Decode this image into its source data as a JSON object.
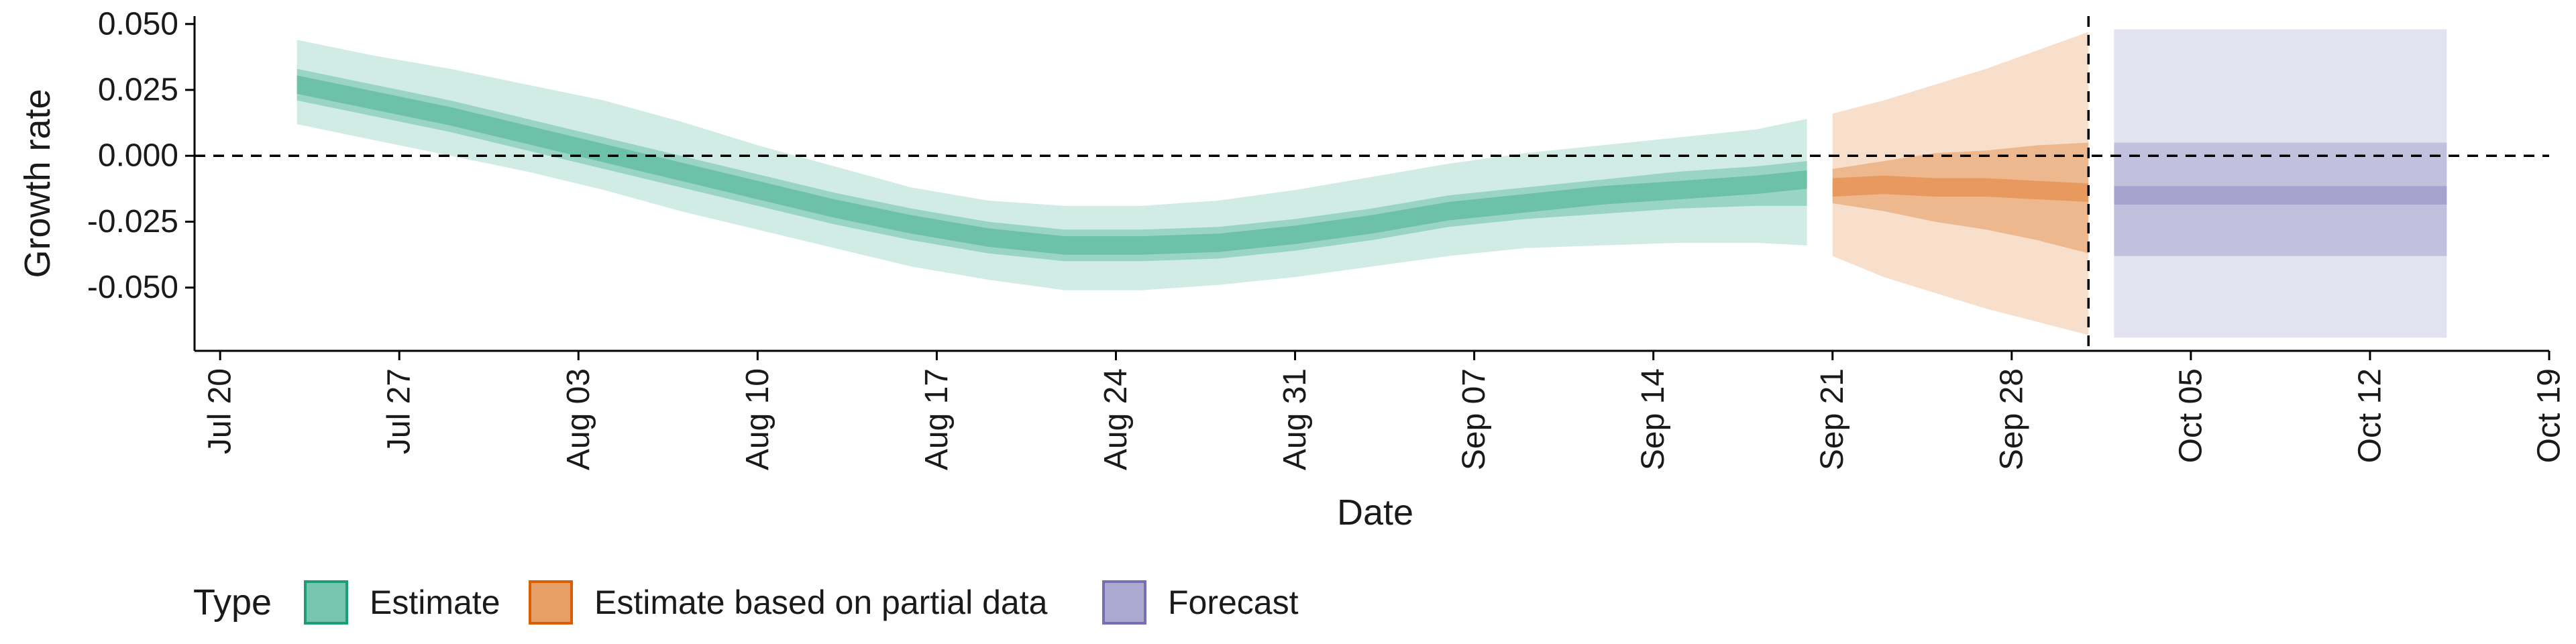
{
  "chart_data": {
    "type": "area",
    "xlabel": "Date",
    "ylabel": "Growth rate",
    "x_ticks": [
      "Jul 20",
      "Jul 27",
      "Aug 03",
      "Aug 10",
      "Aug 17",
      "Aug 24",
      "Aug 31",
      "Sep 07",
      "Sep 14",
      "Sep 21",
      "Sep 28",
      "Oct 05",
      "Oct 12",
      "Oct 19"
    ],
    "y_ticks": [
      "0.050",
      "0.025",
      "0.000",
      "-0.025",
      "-0.050"
    ],
    "xlim": [
      "2020-07-19",
      "2020-10-19"
    ],
    "ylim": [
      -0.074,
      0.053
    ],
    "reference_lines": {
      "horizontal_y": 0.0,
      "vertical_date": "2020-10-01"
    },
    "grid": false,
    "legend": {
      "title": "Type",
      "position": "bottom-left",
      "items": [
        {
          "label": "Estimate",
          "color": "#1b9e77"
        },
        {
          "label": "Estimate based on partial data",
          "color": "#d95f02"
        },
        {
          "label": "Forecast",
          "color": "#7570b3"
        }
      ]
    },
    "series": [
      {
        "name": "Estimate",
        "color": "#1b9e77",
        "dates": [
          "2020-07-23",
          "2020-07-26",
          "2020-07-29",
          "2020-08-01",
          "2020-08-04",
          "2020-08-07",
          "2020-08-10",
          "2020-08-13",
          "2020-08-16",
          "2020-08-19",
          "2020-08-22",
          "2020-08-25",
          "2020-08-28",
          "2020-08-31",
          "2020-09-03",
          "2020-09-06",
          "2020-09-09",
          "2020-09-12",
          "2020-09-15",
          "2020-09-18",
          "2020-09-20"
        ],
        "median": [
          0.027,
          0.021,
          0.015,
          0.008,
          0.001,
          -0.006,
          -0.013,
          -0.02,
          -0.026,
          -0.031,
          -0.034,
          -0.034,
          -0.033,
          -0.03,
          -0.026,
          -0.021,
          -0.018,
          -0.015,
          -0.013,
          -0.011,
          -0.009
        ],
        "lower_90": [
          0.012,
          0.006,
          0.0,
          -0.006,
          -0.013,
          -0.021,
          -0.028,
          -0.035,
          -0.042,
          -0.047,
          -0.051,
          -0.051,
          -0.049,
          -0.046,
          -0.042,
          -0.038,
          -0.035,
          -0.034,
          -0.033,
          -0.033,
          -0.034
        ],
        "upper_90": [
          0.044,
          0.038,
          0.033,
          0.027,
          0.021,
          0.013,
          0.004,
          -0.004,
          -0.012,
          -0.017,
          -0.019,
          -0.019,
          -0.017,
          -0.013,
          -0.008,
          -0.003,
          0.001,
          0.004,
          0.007,
          0.01,
          0.014
        ],
        "lower_50": [
          0.021,
          0.015,
          0.009,
          0.002,
          -0.005,
          -0.012,
          -0.019,
          -0.026,
          -0.032,
          -0.037,
          -0.04,
          -0.04,
          -0.039,
          -0.036,
          -0.032,
          -0.027,
          -0.024,
          -0.022,
          -0.02,
          -0.019,
          -0.019
        ],
        "upper_50": [
          0.033,
          0.027,
          0.021,
          0.014,
          0.007,
          0.0,
          -0.007,
          -0.014,
          -0.02,
          -0.025,
          -0.028,
          -0.028,
          -0.027,
          -0.024,
          -0.02,
          -0.015,
          -0.012,
          -0.009,
          -0.006,
          -0.004,
          -0.002
        ]
      },
      {
        "name": "Estimate based on partial data",
        "color": "#d95f02",
        "dates": [
          "2020-09-21",
          "2020-09-23",
          "2020-09-25",
          "2020-09-27",
          "2020-09-29",
          "2020-10-01"
        ],
        "median": [
          -0.012,
          -0.011,
          -0.012,
          -0.012,
          -0.013,
          -0.014
        ],
        "lower_90": [
          -0.038,
          -0.046,
          -0.052,
          -0.058,
          -0.063,
          -0.068
        ],
        "upper_90": [
          0.016,
          0.021,
          0.027,
          0.033,
          0.04,
          0.047
        ],
        "lower_50": [
          -0.018,
          -0.021,
          -0.025,
          -0.028,
          -0.032,
          -0.037
        ],
        "upper_50": [
          -0.005,
          -0.002,
          0.001,
          0.002,
          0.004,
          0.005
        ]
      },
      {
        "name": "Forecast",
        "color": "#7570b3",
        "dates": [
          "2020-10-02",
          "2020-10-15"
        ],
        "median": [
          -0.015,
          -0.015
        ],
        "lower_90": [
          -0.069,
          -0.069
        ],
        "upper_90": [
          0.048,
          0.048
        ],
        "lower_50": [
          -0.038,
          -0.038
        ],
        "upper_50": [
          0.005,
          0.005
        ]
      }
    ]
  }
}
